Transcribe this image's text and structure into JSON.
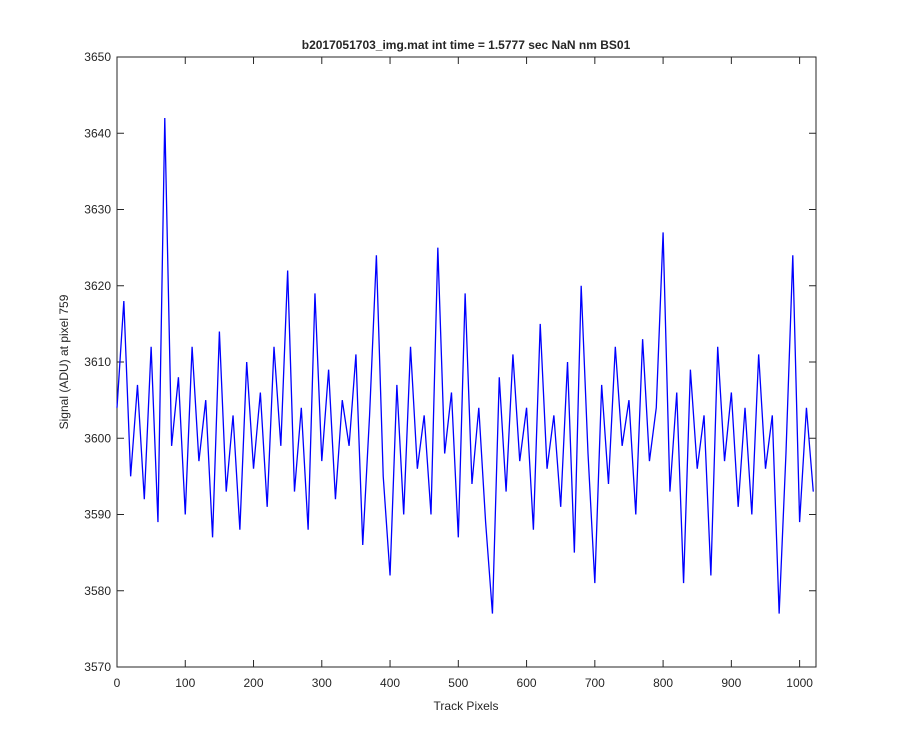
{
  "chart_data": {
    "type": "line",
    "title": "b2017051703_img.mat int time = 1.5777 sec  NaN nm BS01",
    "x_label": "Track Pixels",
    "y_label": "Signal (ADU) at pixel 759",
    "x": [
      0,
      10,
      20,
      30,
      40,
      50,
      60,
      70,
      80,
      90,
      100,
      110,
      120,
      130,
      140,
      150,
      160,
      170,
      180,
      190,
      200,
      210,
      220,
      230,
      240,
      250,
      260,
      270,
      280,
      290,
      300,
      310,
      320,
      330,
      340,
      350,
      360,
      370,
      380,
      390,
      400,
      410,
      420,
      430,
      440,
      450,
      460,
      470,
      480,
      490,
      500,
      510,
      520,
      530,
      540,
      550,
      560,
      570,
      580,
      590,
      600,
      610,
      620,
      630,
      640,
      650,
      660,
      670,
      680,
      690,
      700,
      710,
      720,
      730,
      740,
      750,
      760,
      770,
      780,
      790,
      800,
      810,
      820,
      830,
      840,
      850,
      860,
      870,
      880,
      890,
      900,
      910,
      920,
      930,
      940,
      950,
      960,
      970,
      980,
      990,
      1000,
      1010,
      1020
    ],
    "series": [
      {
        "color": "#0000ff",
        "values": [
          3604,
          3618,
          3595,
          3607,
          3592,
          3612,
          3589,
          3642,
          3599,
          3608,
          3590,
          3612,
          3597,
          3605,
          3587,
          3614,
          3593,
          3603,
          3588,
          3610,
          3596,
          3606,
          3591,
          3612,
          3599,
          3622,
          3593,
          3604,
          3588,
          3619,
          3597,
          3609,
          3592,
          3605,
          3599,
          3611,
          3586,
          3603,
          3624,
          3595,
          3582,
          3607,
          3590,
          3612,
          3596,
          3603,
          3590,
          3625,
          3598,
          3606,
          3587,
          3619,
          3594,
          3604,
          3589,
          3577,
          3608,
          3593,
          3611,
          3597,
          3604,
          3588,
          3615,
          3596,
          3603,
          3591,
          3610,
          3585,
          3620,
          3598,
          3581,
          3607,
          3594,
          3612,
          3599,
          3605,
          3590,
          3613,
          3597,
          3604,
          3627,
          3593,
          3606,
          3581,
          3609,
          3596,
          3603,
          3582,
          3612,
          3597,
          3606,
          3591,
          3604,
          3590,
          3611,
          3596,
          3603,
          3577,
          3598,
          3624,
          3589,
          3604,
          3593
        ]
      }
    ],
    "xlim": [
      0,
      1024
    ],
    "ylim": [
      3570,
      3650
    ],
    "xticks": [
      0,
      100,
      200,
      300,
      400,
      500,
      600,
      700,
      800,
      900,
      1000
    ],
    "yticks": [
      3570,
      3580,
      3590,
      3600,
      3610,
      3620,
      3630,
      3640,
      3650
    ]
  }
}
